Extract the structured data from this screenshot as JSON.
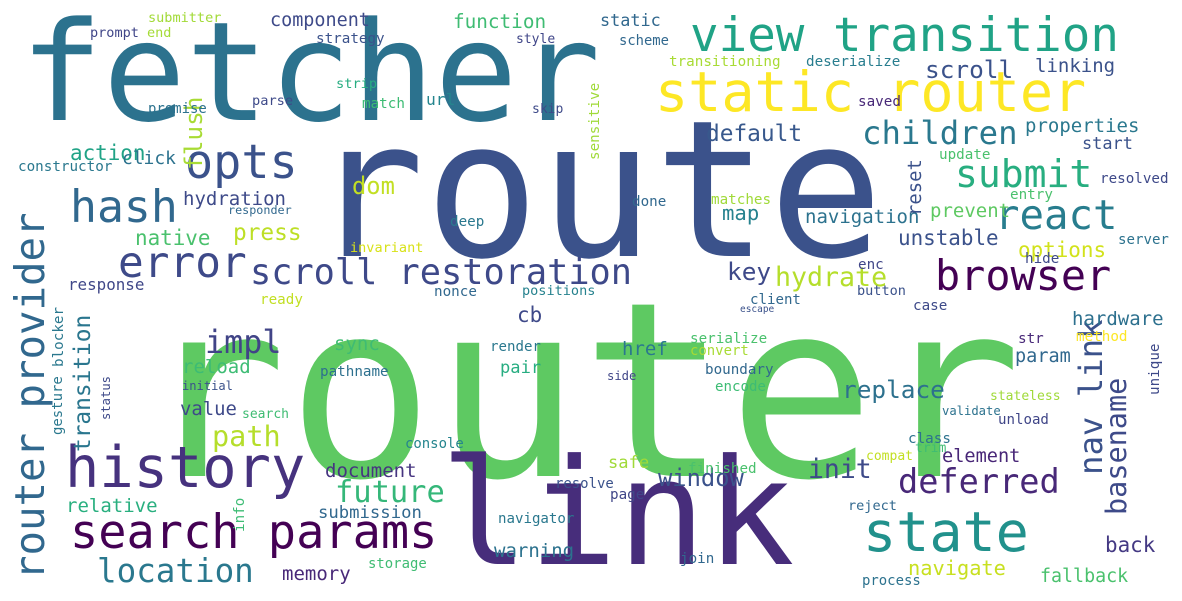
{
  "words": [
    {
      "text": "router",
      "color": "#5ec962",
      "rot": 0
    },
    {
      "text": "route",
      "color": "#3b528b",
      "rot": 0
    },
    {
      "text": "fetcher",
      "color": "#2c728e",
      "rot": 0
    },
    {
      "text": "link",
      "color": "#472d7b",
      "rot": 0
    },
    {
      "text": "view transition",
      "color": "#20a386",
      "rot": 0
    },
    {
      "text": "static router",
      "color": "#fde725",
      "rot": 0
    },
    {
      "text": "search params",
      "color": "#440154",
      "rot": 0
    },
    {
      "text": "history",
      "color": "#46327e",
      "rot": 0
    },
    {
      "text": "state",
      "color": "#21918c",
      "rot": 0
    },
    {
      "text": "router provider",
      "color": "#31688e",
      "rot": 90
    },
    {
      "text": "opts",
      "color": "#3b528b",
      "rot": 0
    },
    {
      "text": "hash",
      "color": "#31688e",
      "rot": 0
    },
    {
      "text": "error",
      "color": "#3e4a89",
      "rot": 0
    },
    {
      "text": "browser",
      "color": "#440154",
      "rot": 0
    },
    {
      "text": "scroll restoration",
      "color": "#3e4989",
      "rot": 0
    },
    {
      "text": "react",
      "color": "#287d8e",
      "rot": 0
    },
    {
      "text": "submit",
      "color": "#28ae80",
      "rot": 0
    },
    {
      "text": "children",
      "color": "#2a788e",
      "rot": 0
    },
    {
      "text": "nav link",
      "color": "#3b528b",
      "rot": 90
    },
    {
      "text": "location",
      "color": "#2a788e",
      "rot": 0
    },
    {
      "text": "deferred",
      "color": "#482878",
      "rot": 0
    },
    {
      "text": "future",
      "color": "#35b779",
      "rot": 0
    },
    {
      "text": "basename",
      "color": "#3e4a89",
      "rot": 90
    },
    {
      "text": "impl",
      "color": "#414487",
      "rot": 0
    },
    {
      "text": "path",
      "color": "#b5de2b",
      "rot": 0
    },
    {
      "text": "key",
      "color": "#3e4989",
      "rot": 0
    },
    {
      "text": "hydrate",
      "color": "#b5de2b",
      "rot": 0
    },
    {
      "text": "transition",
      "color": "#2a768e",
      "rot": 90
    },
    {
      "text": "static",
      "color": "#31688e",
      "rot": 0
    },
    {
      "text": "scroll",
      "color": "#3b528b",
      "rot": 0
    },
    {
      "text": "replace",
      "color": "#2d718e",
      "rot": 0
    },
    {
      "text": "init",
      "color": "#3e4a89",
      "rot": 0
    },
    {
      "text": "window",
      "color": "#3b528b",
      "rot": 0
    },
    {
      "text": "navigate",
      "color": "#c8e020",
      "rot": 0
    },
    {
      "text": "element",
      "color": "#482677",
      "rot": 0
    },
    {
      "text": "back",
      "color": "#443983",
      "rot": 0
    },
    {
      "text": "default",
      "color": "#38588c",
      "rot": 0
    },
    {
      "text": "action",
      "color": "#20a386",
      "rot": 0
    },
    {
      "text": "component",
      "color": "#3e4a89",
      "rot": 0
    },
    {
      "text": "function",
      "color": "#3fbc73",
      "rot": 0
    },
    {
      "text": "linking",
      "color": "#3b528b",
      "rot": 0
    },
    {
      "text": "properties",
      "color": "#2a788e",
      "rot": 0
    },
    {
      "text": "start",
      "color": "#3b528b",
      "rot": 0
    },
    {
      "text": "dom",
      "color": "#c2df23",
      "rot": 0
    },
    {
      "text": "native",
      "color": "#4ac16d",
      "rot": 0
    },
    {
      "text": "press",
      "color": "#bddf26",
      "rot": 0
    },
    {
      "text": "hydration",
      "color": "#3e4a89",
      "rot": 0
    },
    {
      "text": "unstable",
      "color": "#3b528b",
      "rot": 0
    },
    {
      "text": "options",
      "color": "#d2e21b",
      "rot": 0
    },
    {
      "text": "navigation",
      "color": "#2c728e",
      "rot": 0
    },
    {
      "text": "map",
      "color": "#26828e",
      "rot": 0
    },
    {
      "text": "prevent",
      "color": "#5ec962",
      "rot": 0
    },
    {
      "text": "response",
      "color": "#3f4788",
      "rot": 0
    },
    {
      "text": "hardware",
      "color": "#2d708e",
      "rot": 0
    },
    {
      "text": "param",
      "color": "#31688e",
      "rot": 0
    },
    {
      "text": "href",
      "color": "#2a788e",
      "rot": 0
    },
    {
      "text": "sync",
      "color": "#3fbc73",
      "rot": 0
    },
    {
      "text": "cb",
      "color": "#3e4989",
      "rot": 0
    },
    {
      "text": "pair",
      "color": "#27ad81",
      "rot": 0
    },
    {
      "text": "reload",
      "color": "#3dbc74",
      "rot": 0
    },
    {
      "text": "value",
      "color": "#3e4989",
      "rot": 0
    },
    {
      "text": "relative",
      "color": "#29af7f",
      "rot": 0
    },
    {
      "text": "document",
      "color": "#463480",
      "rot": 0
    },
    {
      "text": "submission",
      "color": "#31688e",
      "rot": 0
    },
    {
      "text": "safe",
      "color": "#a0da39",
      "rot": 0
    },
    {
      "text": "warning",
      "color": "#2c728e",
      "rot": 0
    },
    {
      "text": "memory",
      "color": "#482878",
      "rot": 0
    },
    {
      "text": "fallback",
      "color": "#4ac16d",
      "rot": 0
    },
    {
      "text": "flush",
      "color": "#a8db34",
      "rot": 90
    },
    {
      "text": "click",
      "color": "#2c728e",
      "rot": 0
    },
    {
      "text": "url",
      "color": "#25858e",
      "rot": 0
    },
    {
      "text": "reset",
      "color": "#3b528b",
      "rot": 90
    },
    {
      "text": "submitter",
      "color": "#a2da37",
      "rot": 0
    },
    {
      "text": "end",
      "color": "#a5db36",
      "rot": 0
    },
    {
      "text": "prompt",
      "color": "#404688",
      "rot": 0
    },
    {
      "text": "strategy",
      "color": "#3b528b",
      "rot": 0
    },
    {
      "text": "style",
      "color": "#404688",
      "rot": 0
    },
    {
      "text": "scheme",
      "color": "#31688e",
      "rot": 0
    },
    {
      "text": "transitioning",
      "color": "#a8db34",
      "rot": 0
    },
    {
      "text": "deserialize",
      "color": "#287d8e",
      "rot": 0
    },
    {
      "text": "strip",
      "color": "#27ad81",
      "rot": 0
    },
    {
      "text": "promise",
      "color": "#2c728e",
      "rot": 0
    },
    {
      "text": "parse",
      "color": "#3e4a89",
      "rot": 0
    },
    {
      "text": "match",
      "color": "#3dbc74",
      "rot": 0
    },
    {
      "text": "skip",
      "color": "#3e4a89",
      "rot": 0
    },
    {
      "text": "saved",
      "color": "#482878",
      "rot": 0
    },
    {
      "text": "sensitive",
      "color": "#a0da39",
      "rot": 90
    },
    {
      "text": "constructor",
      "color": "#2a788e",
      "rot": 0
    },
    {
      "text": "update",
      "color": "#4ac16d",
      "rot": 0
    },
    {
      "text": "resolved",
      "color": "#3e4989",
      "rot": 0
    },
    {
      "text": "matches",
      "color": "#a0da39",
      "rot": 0
    },
    {
      "text": "done",
      "color": "#31688e",
      "rot": 0
    },
    {
      "text": "entry",
      "color": "#4ac16d",
      "rot": 0
    },
    {
      "text": "responder",
      "color": "#31688e",
      "rot": 0
    },
    {
      "text": "deep",
      "color": "#2a788e",
      "rot": 0
    },
    {
      "text": "invariant",
      "color": "#d8e219",
      "rot": 0
    },
    {
      "text": "server",
      "color": "#2c728e",
      "rot": 0
    },
    {
      "text": "hide",
      "color": "#3e4989",
      "rot": 0
    },
    {
      "text": "enc",
      "color": "#404688",
      "rot": 0
    },
    {
      "text": "nonce",
      "color": "#31688e",
      "rot": 0
    },
    {
      "text": "positions",
      "color": "#26828e",
      "rot": 0
    },
    {
      "text": "button",
      "color": "#3b528b",
      "rot": 0
    },
    {
      "text": "client",
      "color": "#31688e",
      "rot": 0
    },
    {
      "text": "case",
      "color": "#3e4a89",
      "rot": 0
    },
    {
      "text": "ready",
      "color": "#c2df23",
      "rot": 0
    },
    {
      "text": "escape",
      "color": "#3b528b",
      "rot": 0
    },
    {
      "text": "blocker",
      "color": "#2a788e",
      "rot": 90
    },
    {
      "text": "render",
      "color": "#2a788e",
      "rot": 0
    },
    {
      "text": "serialize",
      "color": "#4ac16d",
      "rot": 0
    },
    {
      "text": "convert",
      "color": "#a8db34",
      "rot": 0
    },
    {
      "text": "str",
      "color": "#482878",
      "rot": 0
    },
    {
      "text": "method",
      "color": "#fde725",
      "rot": 0
    },
    {
      "text": "unique",
      "color": "#3e4989",
      "rot": 90
    },
    {
      "text": "pathname",
      "color": "#2d708e",
      "rot": 0
    },
    {
      "text": "side",
      "color": "#404688",
      "rot": 0
    },
    {
      "text": "boundary",
      "color": "#31688e",
      "rot": 0
    },
    {
      "text": "encode",
      "color": "#3dbc74",
      "rot": 0
    },
    {
      "text": "gesture",
      "color": "#2a788e",
      "rot": 90
    },
    {
      "text": "status",
      "color": "#3e4a89",
      "rot": 90
    },
    {
      "text": "initial",
      "color": "#3b528b",
      "rot": 0
    },
    {
      "text": "search",
      "color": "#3fbc73",
      "rot": 0
    },
    {
      "text": "stateless",
      "color": "#a0da39",
      "rot": 0
    },
    {
      "text": "unload",
      "color": "#404688",
      "rot": 0
    },
    {
      "text": "validate",
      "color": "#2c728e",
      "rot": 0
    },
    {
      "text": "class",
      "color": "#2c728e",
      "rot": 0
    },
    {
      "text": "trim",
      "color": "#3fbc73",
      "rot": 0
    },
    {
      "text": "console",
      "color": "#25858e",
      "rot": 0
    },
    {
      "text": "compat",
      "color": "#c2df23",
      "rot": 0
    },
    {
      "text": "finished",
      "color": "#4ac16d",
      "rot": 0
    },
    {
      "text": "info",
      "color": "#3dbc74",
      "rot": 90
    },
    {
      "text": "resolve",
      "color": "#3b528b",
      "rot": 0
    },
    {
      "text": "page",
      "color": "#404688",
      "rot": 0
    },
    {
      "text": "reject",
      "color": "#31688e",
      "rot": 0
    },
    {
      "text": "navigator",
      "color": "#2a788e",
      "rot": 0
    },
    {
      "text": "storage",
      "color": "#3fbc73",
      "rot": 0
    },
    {
      "text": "join",
      "color": "#31688e",
      "rot": 0
    },
    {
      "text": "process",
      "color": "#2c728e",
      "rot": 0
    }
  ]
}
